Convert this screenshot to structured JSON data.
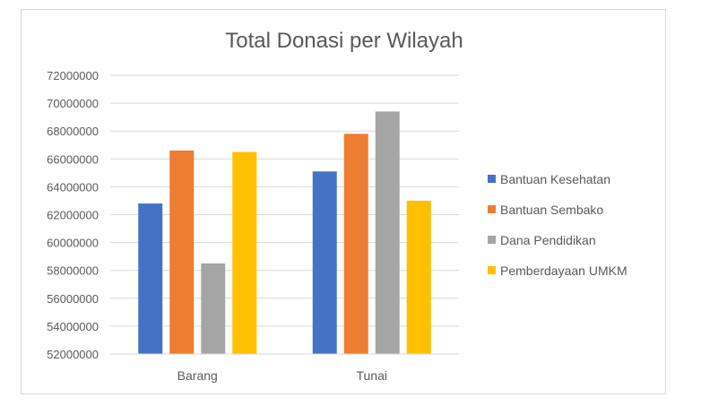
{
  "chart_data": {
    "type": "bar",
    "title": "Total Donasi per Wilayah",
    "xlabel": "",
    "ylabel": "",
    "categories": [
      "Barang",
      "Tunai"
    ],
    "series": [
      {
        "name": "Bantuan Kesehatan",
        "values": [
          62800000,
          65100000
        ]
      },
      {
        "name": "Bantuan Sembako",
        "values": [
          66600000,
          67800000
        ]
      },
      {
        "name": "Dana Pendidikan",
        "values": [
          58500000,
          69400000
        ]
      },
      {
        "name": "Pemberdayaan UMKM",
        "values": [
          66500000,
          63000000
        ]
      }
    ],
    "ylim": [
      52000000,
      72000000
    ],
    "y_ticks": [
      "52000000",
      "54000000",
      "56000000",
      "58000000",
      "60000000",
      "62000000",
      "64000000",
      "66000000",
      "68000000",
      "70000000",
      "72000000"
    ],
    "grid": true,
    "legend_position": "right",
    "colors": [
      "#4472C4",
      "#ED7D31",
      "#A5A5A5",
      "#FFC000"
    ]
  }
}
